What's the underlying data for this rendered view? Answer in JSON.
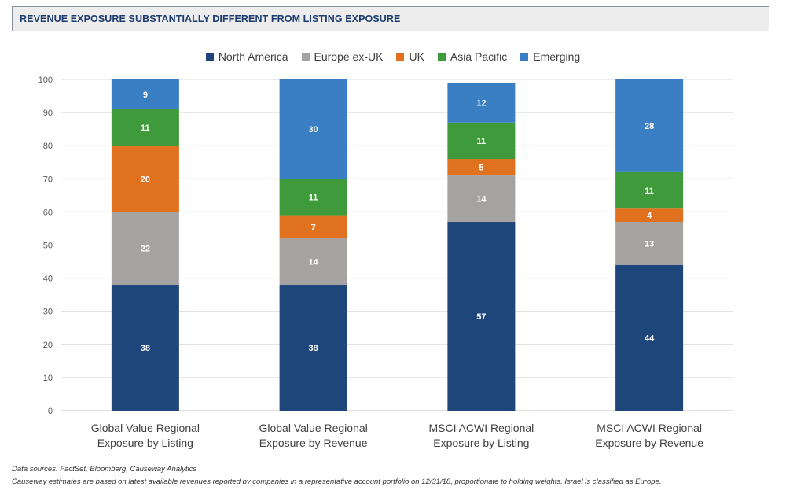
{
  "header": {
    "title": "REVENUE EXPOSURE SUBSTANTIALLY DIFFERENT FROM LISTING EXPOSURE"
  },
  "chart_data": {
    "type": "bar",
    "stacked": true,
    "categories": [
      [
        "Global Value Regional",
        "Exposure by Listing"
      ],
      [
        "Global Value Regional",
        "Exposure by Revenue"
      ],
      [
        "MSCI ACWI Regional",
        "Exposure by Listing"
      ],
      [
        "MSCI ACWI Regional",
        "Exposure by Revenue"
      ]
    ],
    "series": [
      {
        "name": "North America",
        "color": "#1f467a",
        "values": [
          38,
          38,
          57,
          44
        ]
      },
      {
        "name": "Europe ex-UK",
        "color": "#a5a2a2",
        "values": [
          22,
          14,
          14,
          13
        ]
      },
      {
        "name": "UK",
        "color": "#e0711e",
        "values": [
          20,
          7,
          5,
          4
        ]
      },
      {
        "name": "Asia Pacific",
        "color": "#3e9a3a",
        "values": [
          11,
          11,
          11,
          11
        ]
      },
      {
        "name": "Emerging",
        "color": "#3a7fc3",
        "values": [
          9,
          30,
          12,
          28
        ]
      }
    ],
    "ylim": [
      0,
      100
    ],
    "yticks": [
      0,
      10,
      20,
      30,
      40,
      50,
      60,
      70,
      80,
      90,
      100
    ],
    "grid": true,
    "legend_position": "top"
  },
  "footnotes": [
    "Data sources: FactSet, Bloomberg, Causeway Analytics",
    "Causeway estimates are based on latest available revenues reported by companies in a representative account portfolio on 12/31/18, proportionate to holding weights. Israel is classified as Europe."
  ]
}
